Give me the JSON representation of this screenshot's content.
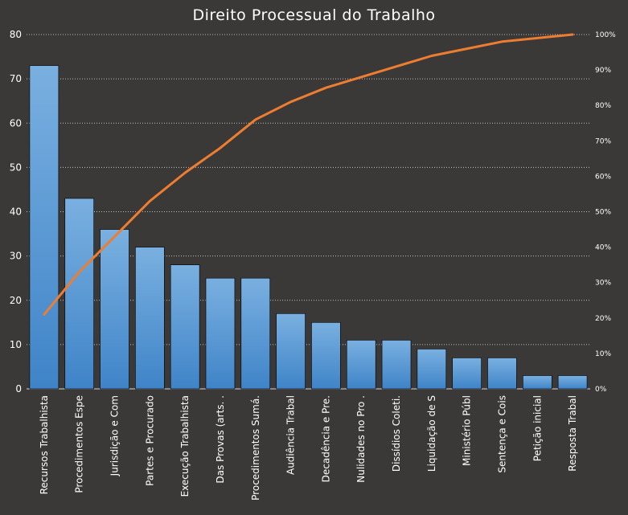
{
  "chart_data": {
    "type": "bar",
    "title": "Direito Processual do Trabalho",
    "categories": [
      "Recursos Trabalhista",
      "Procedimentos Espe",
      "Jurisdição e Com",
      "Partes e Procurado",
      "Execução Trabalhista",
      "Das Provas (arts. .",
      "Procedimentos Sumá.",
      "Audiência Trabal",
      "Decadência e Pre.",
      "Nulidades no Pro .",
      "Dissídios Coleti.",
      "Liquidação de S",
      "Ministério Públ",
      "Sentença e Cois",
      "Petição inicial",
      "Resposta Trabal"
    ],
    "series": [
      {
        "type": "bar",
        "values": [
          73,
          43,
          36,
          32,
          28,
          25,
          25,
          17,
          15,
          11,
          11,
          9,
          7,
          7,
          3,
          3
        ]
      },
      {
        "type": "line",
        "axis": "right",
        "values": [
          21,
          33,
          43,
          53,
          61,
          68,
          76,
          81,
          85,
          88,
          91,
          94,
          96,
          98,
          99,
          100
        ]
      }
    ],
    "ylim_left": [
      0,
      80
    ],
    "yticks_left": [
      "0",
      "10",
      "20",
      "30",
      "40",
      "50",
      "60",
      "70",
      "80"
    ],
    "ylim_right": [
      0,
      100
    ],
    "yticks_right": [
      "0%",
      "10%",
      "20%",
      "30%",
      "40%",
      "50%",
      "60%",
      "70%",
      "80%",
      "90%",
      "100%"
    ],
    "grid": true,
    "colors": {
      "background": "#3b3937",
      "bar": "#5b9bd5",
      "bar_top": "#7ab0e0",
      "bar_bottom": "#3f84c8",
      "line": "#ed7d31",
      "grid": "#bfbfbf",
      "text": "#ffffff"
    }
  }
}
